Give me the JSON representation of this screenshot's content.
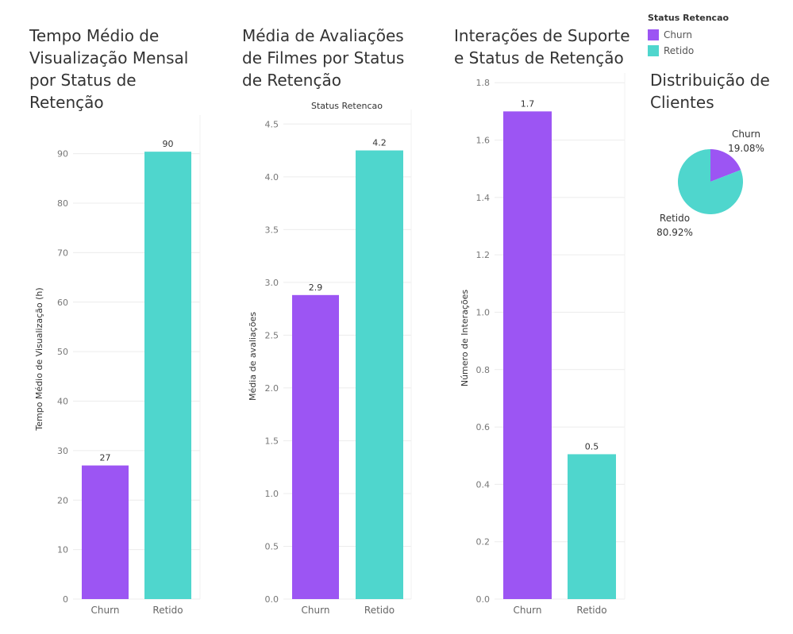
{
  "colors": {
    "churn": "#9c55f3",
    "retido": "#4fd6cd"
  },
  "legend": {
    "title": "Status Retencao",
    "items": [
      {
        "label": "Churn",
        "color": "#9c55f3"
      },
      {
        "label": "Retido",
        "color": "#4fd6cd"
      }
    ]
  },
  "charts": {
    "c1": {
      "title": "Tempo Médio de\nVisualização Mensal\npor Status de\nRetenção"
    },
    "c2": {
      "title": "Média de Avaliações\nde Filmes por Status\nde Retenção",
      "header": "Status Retencao"
    },
    "c3": {
      "title": "Interações de Suporte\ne Status de Retenção"
    },
    "c4": {
      "title": "Distribuição de\nClientes"
    }
  },
  "chart_data": [
    {
      "type": "bar",
      "title": "Tempo Médio de Visualização Mensal por Status de Retenção",
      "ylabel": "Tempo Médio de Visualização (h)",
      "categories": [
        "Churn",
        "Retido"
      ],
      "values": [
        27,
        90.4
      ],
      "labels": [
        "27",
        "90"
      ],
      "ylim": [
        0,
        97
      ],
      "yticks": [
        0,
        10,
        20,
        30,
        40,
        50,
        60,
        70,
        80,
        90
      ],
      "tick_labels": [
        "0",
        "10",
        "20",
        "30",
        "40",
        "50",
        "60",
        "70",
        "80",
        "90"
      ],
      "colors": [
        "#9c55f3",
        "#4fd6cd"
      ]
    },
    {
      "type": "bar",
      "title": "Média de Avaliações de Filmes por Status de Retenção",
      "ylabel": "Média de avaliações",
      "categories": [
        "Churn",
        "Retido"
      ],
      "values": [
        2.88,
        4.25
      ],
      "labels": [
        "2.9",
        "4.2"
      ],
      "ylim": [
        0,
        4.6
      ],
      "yticks": [
        0,
        0.5,
        1,
        1.5,
        2,
        2.5,
        3,
        3.5,
        4,
        4.5
      ],
      "tick_labels": [
        "0.0",
        "0.5",
        "1.0",
        "1.5",
        "2.0",
        "2.5",
        "3.0",
        "3.5",
        "4.0",
        "4.5"
      ],
      "colors": [
        "#9c55f3",
        "#4fd6cd"
      ]
    },
    {
      "type": "bar",
      "title": "Interações de Suporte e Status de Retenção",
      "ylabel": "Número de Interações",
      "categories": [
        "Churn",
        "Retido"
      ],
      "values": [
        1.7,
        0.505
      ],
      "labels": [
        "1.7",
        "0.5"
      ],
      "ylim": [
        0,
        1.82
      ],
      "yticks": [
        0,
        0.2,
        0.4,
        0.6,
        0.8,
        1.0,
        1.2,
        1.4,
        1.6,
        1.8
      ],
      "tick_labels": [
        "0.0",
        "0.2",
        "0.4",
        "0.6",
        "0.8",
        "1.0",
        "1.2",
        "1.4",
        "1.6",
        "1.8"
      ],
      "colors": [
        "#9c55f3",
        "#4fd6cd"
      ]
    },
    {
      "type": "pie",
      "title": "Distribuição de Clientes",
      "slices": [
        {
          "label": "Churn",
          "value": 19.08,
          "pct_label": "19.08%",
          "color": "#9c55f3"
        },
        {
          "label": "Retido",
          "value": 80.92,
          "pct_label": "80.92%",
          "color": "#4fd6cd"
        }
      ]
    }
  ]
}
